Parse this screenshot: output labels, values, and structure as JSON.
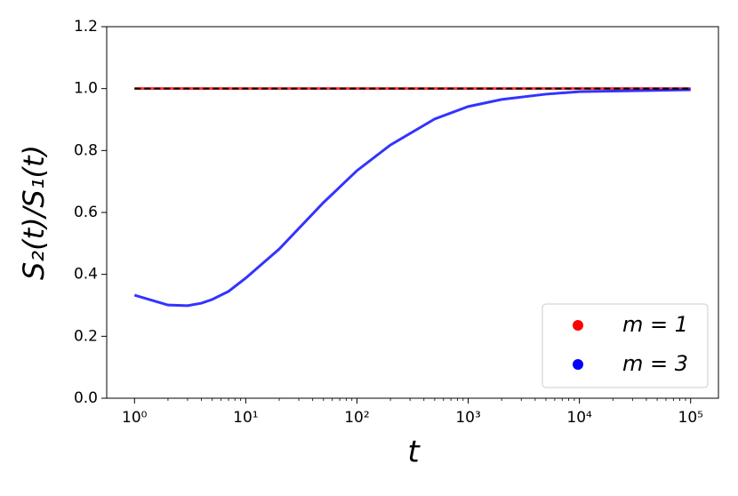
{
  "chart_data": {
    "type": "line",
    "x_label": "t",
    "y_label": "S₂(t)/S₁(t)",
    "x_scale": "log",
    "xlim": [
      0.5623,
      177828
    ],
    "ylim": [
      0,
      1.2
    ],
    "xticks": [
      {
        "value": 1,
        "label": "10⁰"
      },
      {
        "value": 10,
        "label": "10¹"
      },
      {
        "value": 100,
        "label": "10²"
      },
      {
        "value": 1000,
        "label": "10³"
      },
      {
        "value": 10000,
        "label": "10⁴"
      },
      {
        "value": 100000,
        "label": "10⁵"
      }
    ],
    "yticks": [
      {
        "value": 0,
        "label": "0.0"
      },
      0.2,
      0.4,
      0.6,
      0.8,
      {
        "value": 1,
        "label": "1.0"
      },
      1.2
    ],
    "legend_position": "lower right",
    "series": [
      {
        "name": "m = 1",
        "color": "#ff0000",
        "x": [
          1,
          100000
        ],
        "values": [
          1,
          1
        ]
      },
      {
        "name": "m = 3",
        "color": "#0000ff",
        "x": [
          1,
          2,
          3,
          4,
          5,
          7,
          10,
          20,
          50,
          100,
          200,
          500,
          1000,
          2000,
          5000,
          10000,
          100000
        ],
        "values": [
          0.333,
          0.301,
          0.299,
          0.307,
          0.319,
          0.345,
          0.388,
          0.482,
          0.632,
          0.735,
          0.818,
          0.902,
          0.942,
          0.965,
          0.982,
          0.99,
          0.996
        ]
      }
    ],
    "reference_line": {
      "value": 1,
      "color": "#000000",
      "style": "dashed"
    }
  }
}
